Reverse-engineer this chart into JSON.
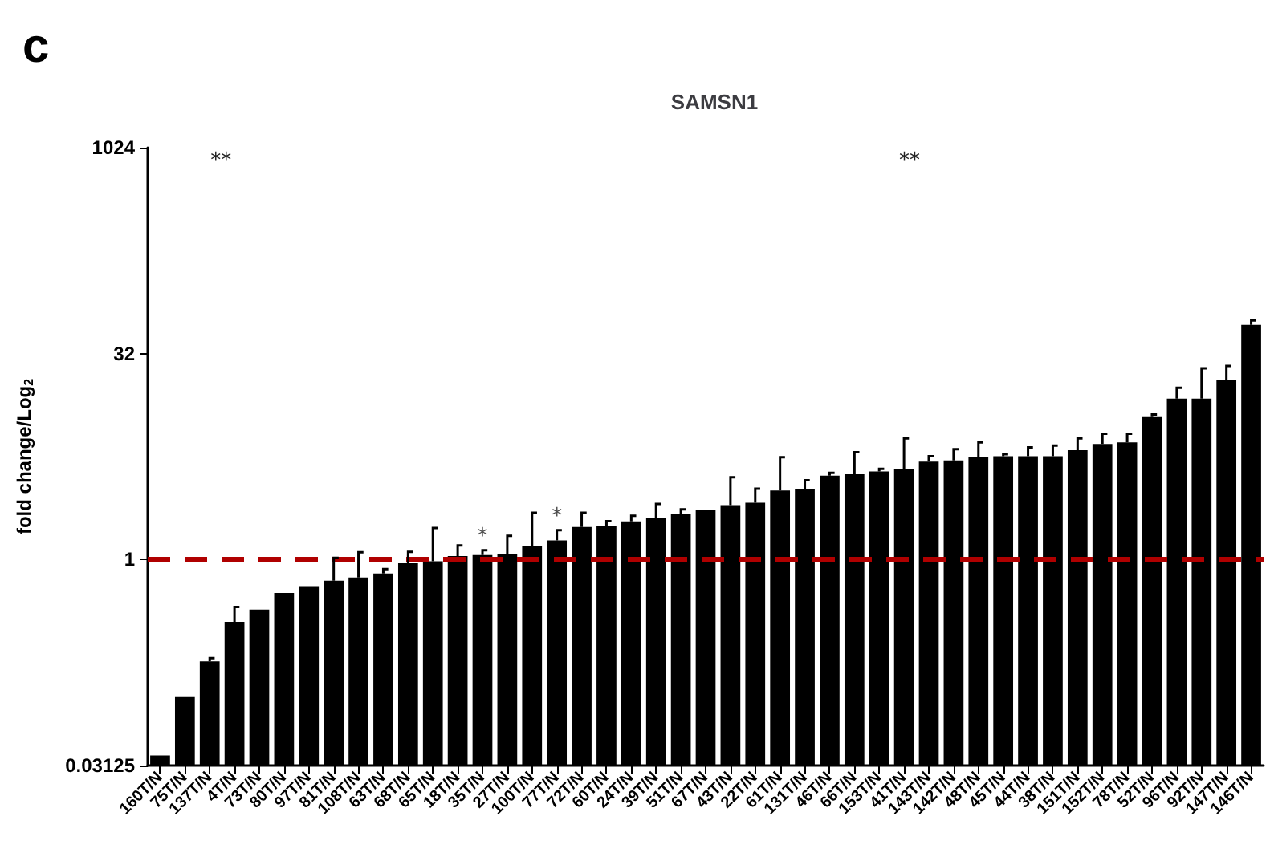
{
  "chart_data": {
    "type": "bar",
    "title": "SAMSN1",
    "ylabel": "fold change/Log$_{2}$",
    "categories": [
      "160T/N",
      "75T/N",
      "137T/N",
      "4T/N",
      "73T/N",
      "80T/N",
      "97T/N",
      "81T/N",
      "108T/N",
      "63T/N",
      "68T/N",
      "65T/N",
      "18T/N",
      "35T/N",
      "27T/N",
      "100T/N",
      "77T/N",
      "72T/N",
      "60T/N",
      "24T/N",
      "39T/N",
      "51T/N",
      "67T/N",
      "43T/N",
      "22T/N",
      "61T/N",
      "131T/N",
      "46T/N",
      "66T/N",
      "153T/N",
      "41T/N",
      "143T/N",
      "142T/N",
      "48T/N",
      "45T/N",
      "44T/N",
      "38T/N",
      "151T/N",
      "152T/N",
      "78T/N",
      "52T/N",
      "96T/N",
      "92T/N",
      "147T/N",
      "146T/N"
    ],
    "series": [
      {
        "color": "#000000",
        "values": [
          0.037,
          0.1,
          0.18,
          0.35,
          0.43,
          0.57,
          0.64,
          0.7,
          0.74,
          0.79,
          0.95,
          0.97,
          1.06,
          1.08,
          1.09,
          1.26,
          1.38,
          1.73,
          1.76,
          1.9,
          2.0,
          2.14,
          2.3,
          2.5,
          2.6,
          3.2,
          3.3,
          4.1,
          4.2,
          4.4,
          4.6,
          5.2,
          5.3,
          5.6,
          5.7,
          5.7,
          5.7,
          6.3,
          7.0,
          7.2,
          11,
          15,
          15,
          20.5,
          52
        ],
        "errors": [
          null,
          null,
          [
            0.18,
            0.19
          ],
          [
            0.35,
            0.45
          ],
          null,
          null,
          null,
          [
            0.7,
            1.03
          ],
          [
            0.74,
            1.13
          ],
          [
            0.79,
            0.85
          ],
          [
            0.95,
            1.14
          ],
          [
            0.97,
            1.7
          ],
          [
            1.06,
            1.27
          ],
          [
            1.08,
            1.17
          ],
          [
            1.09,
            1.49
          ],
          [
            1.26,
            2.2
          ],
          [
            1.38,
            1.64
          ],
          [
            1.73,
            2.2
          ],
          [
            1.76,
            1.91
          ],
          [
            1.9,
            2.09
          ],
          [
            2.0,
            2.55
          ],
          [
            2.14,
            2.33
          ],
          null,
          [
            2.5,
            4.0
          ],
          [
            2.6,
            3.3
          ],
          [
            3.2,
            5.6
          ],
          [
            3.3,
            3.8
          ],
          [
            4.1,
            4.3
          ],
          [
            4.2,
            6.1
          ],
          [
            4.4,
            4.6
          ],
          [
            4.6,
            7.7
          ],
          [
            5.2,
            5.7
          ],
          [
            5.3,
            6.4
          ],
          [
            5.6,
            7.2
          ],
          [
            5.7,
            5.9
          ],
          [
            5.7,
            6.6
          ],
          [
            5.7,
            6.8
          ],
          [
            6.3,
            7.7
          ],
          [
            7.0,
            8.3
          ],
          [
            7.2,
            8.3
          ],
          [
            11,
            11.5
          ],
          [
            15,
            18
          ],
          [
            15,
            25
          ],
          [
            20.5,
            26
          ],
          [
            52,
            56
          ]
        ]
      }
    ],
    "log": "y",
    "ylim": [
      0.03125,
      1024
    ],
    "yticks": [
      0.03125,
      1,
      32,
      1024
    ],
    "grid": false,
    "ref_lines": [
      {
        "axis": "y",
        "value": 1,
        "color": "#b00000",
        "line_style": "dashed"
      }
    ],
    "annotations": [
      "c",
      "**",
      "**",
      {
        "text": "*",
        "x": "35T/N",
        "y": 1.17
      },
      {
        "text": "*",
        "x": "77T/N",
        "y": 1.64
      }
    ]
  }
}
